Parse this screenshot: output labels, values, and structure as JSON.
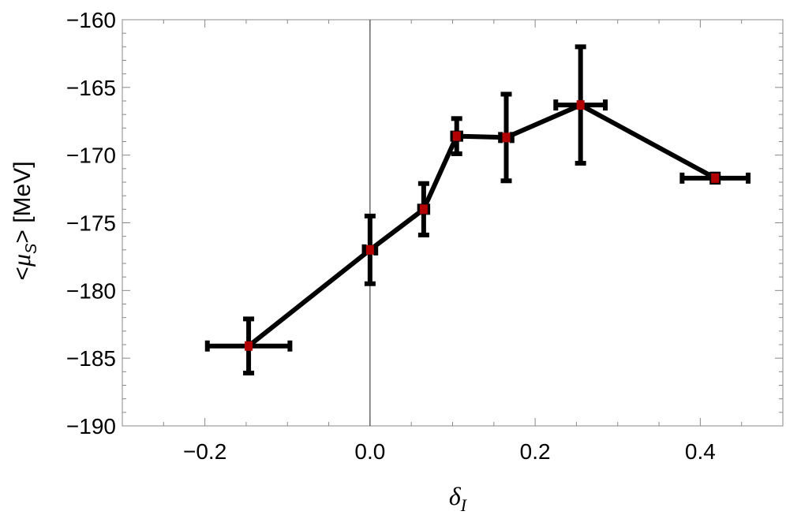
{
  "chart_data": {
    "type": "scatter",
    "title": "",
    "xlabel": "δ",
    "xlabel_sub": "I",
    "ylabel_prefix": "<",
    "ylabel_mu": "μ",
    "ylabel_sub": "S",
    "ylabel_suffix": "> [MeV]",
    "xlim": [
      -0.3,
      0.5
    ],
    "ylim": [
      -190,
      -160
    ],
    "x_ticks": [
      -0.2,
      0.0,
      0.2,
      0.4
    ],
    "x_tick_labels": [
      "−0.2",
      "0.0",
      "0.2",
      "0.4"
    ],
    "y_ticks": [
      -190,
      -185,
      -180,
      -175,
      -170,
      -165,
      -160
    ],
    "y_tick_labels": [
      "−190",
      "−185",
      "−180",
      "−175",
      "−170",
      "−165",
      "−160"
    ],
    "vertical_reference_line_x": 0,
    "grid": false,
    "series": [
      {
        "points": [
          {
            "x": -0.147,
            "y": -184.1,
            "xerr": 0.05,
            "yerr": 2.0
          },
          {
            "x": 0.0,
            "y": -177.0,
            "xerr": 0.007,
            "yerr": 2.5
          },
          {
            "x": 0.065,
            "y": -174.0,
            "xerr": 0.005,
            "yerr": 1.9
          },
          {
            "x": 0.105,
            "y": -168.6,
            "xerr": 0.005,
            "yerr": 1.3
          },
          {
            "x": 0.165,
            "y": -168.7,
            "xerr": 0.007,
            "yerr": 3.2
          },
          {
            "x": 0.255,
            "y": -166.3,
            "xerr": 0.03,
            "yerr": 4.3
          },
          {
            "x": 0.418,
            "y": -171.7,
            "xerr": 0.04,
            "yerr": 0.3
          }
        ]
      }
    ],
    "colors": {
      "line": "#000000",
      "marker": "#b30000",
      "frame": "#888888"
    }
  }
}
